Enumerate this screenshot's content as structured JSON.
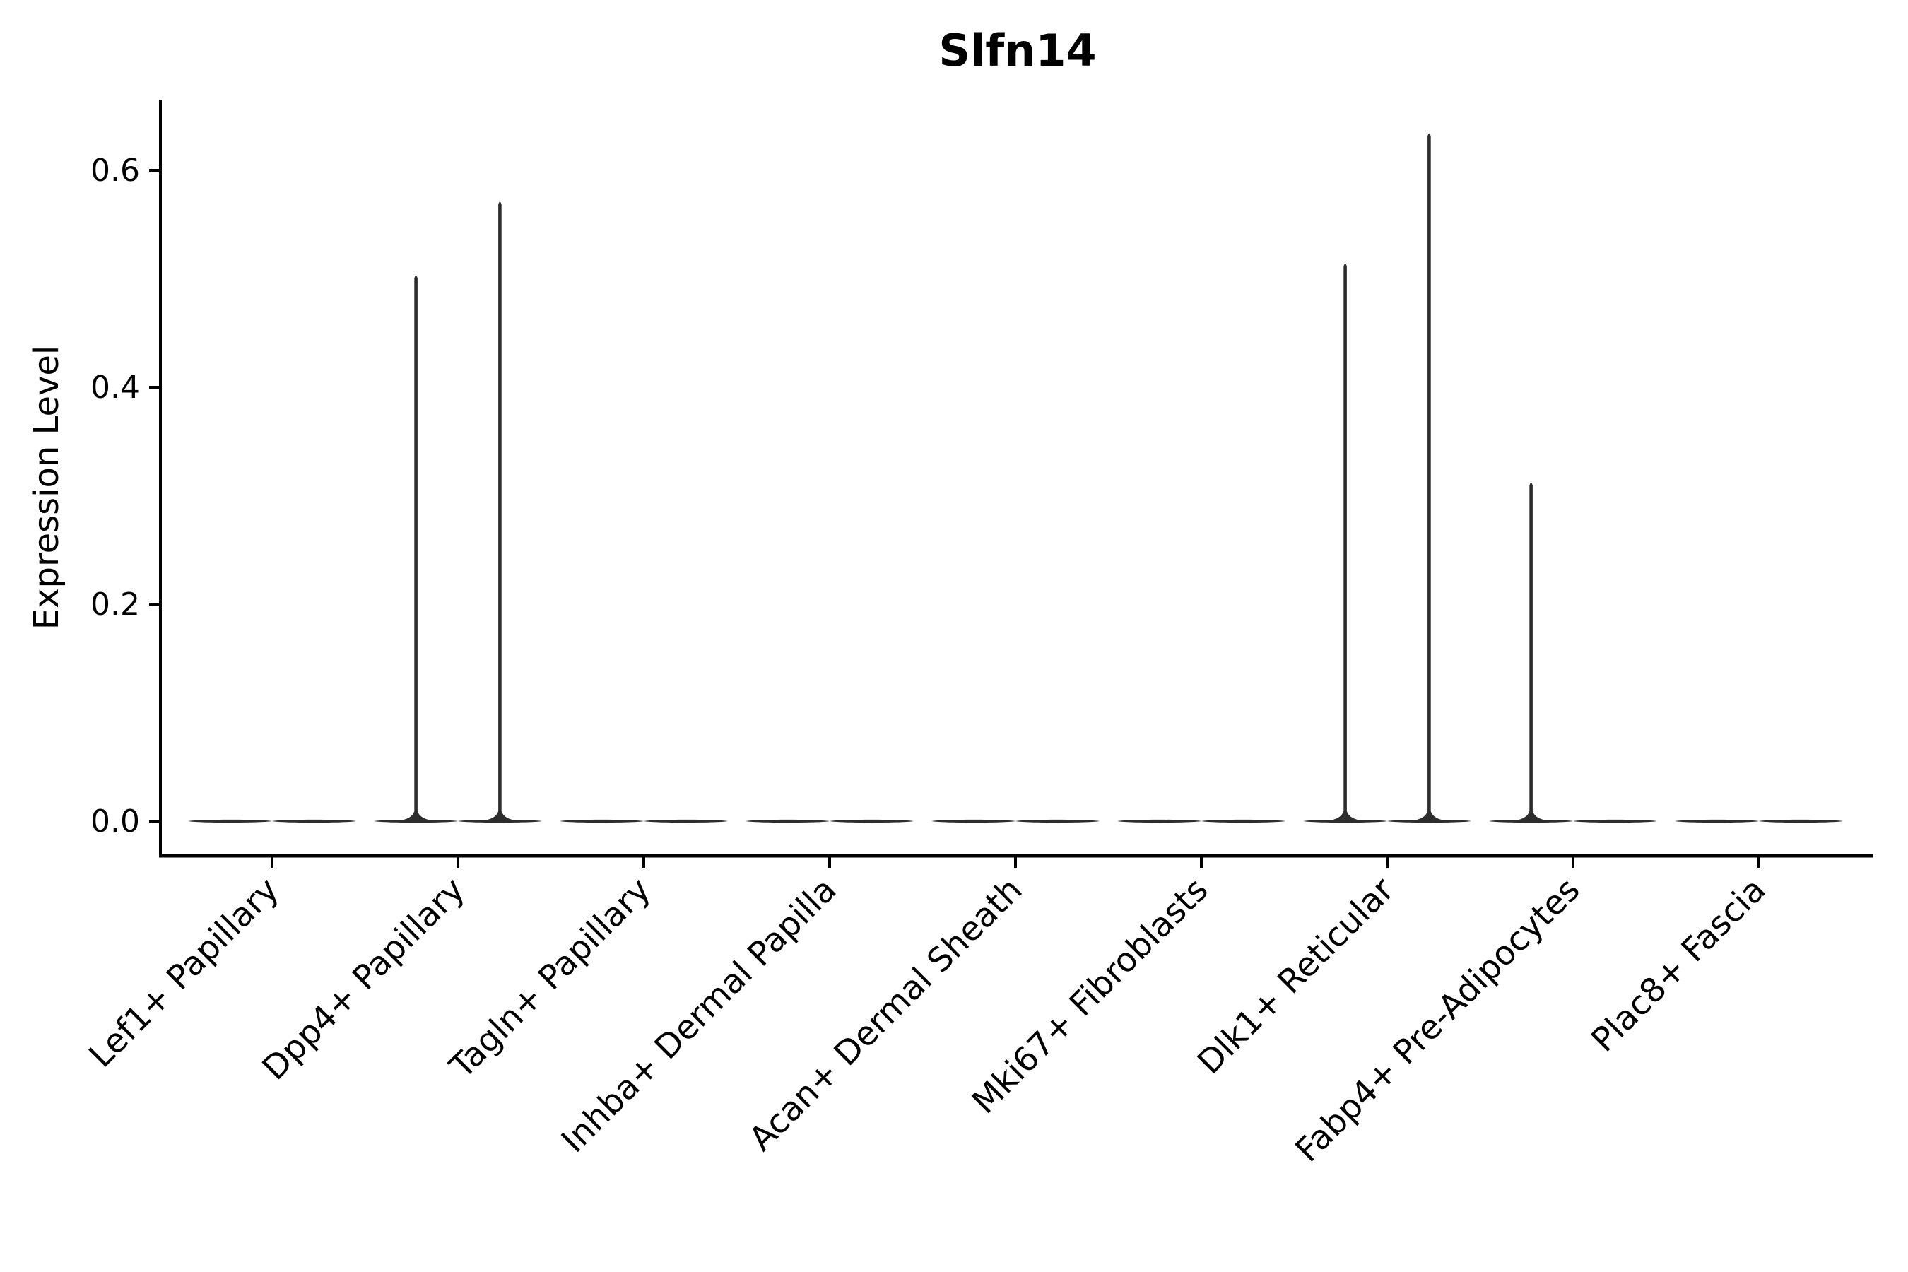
{
  "page": {
    "background": "#ffffff"
  },
  "chart_data": {
    "type": "violin",
    "title": "Slfn14",
    "ylabel": "Expression Level",
    "xlabel": "",
    "categories": [
      "Lef1+ Papillary",
      "Dpp4+ Papillary",
      "Tagln+ Papillary",
      "Inhba+ Dermal Papilla",
      "Acan+ Dermal Sheath",
      "Mki67+ Fibroblasts",
      "Dlk1+ Reticular",
      "Fabp4+ Pre-Adipocytes",
      "Plac8+ Fascia"
    ],
    "ytick_labels": [
      "0.0",
      "0.2",
      "0.4",
      "0.6"
    ],
    "ytick_values": [
      0,
      0.2,
      0.4,
      0.6
    ],
    "ylim": [
      0,
      0.665
    ],
    "grid": false,
    "legend": "none",
    "violins_per_category": 2,
    "series": [
      {
        "name": "left-violin",
        "max_values": [
          0,
          0.503,
          0,
          0,
          0,
          0,
          0.514,
          0.312,
          0
        ]
      },
      {
        "name": "right-violin",
        "max_values": [
          0,
          0.571,
          0,
          0,
          0,
          0,
          0.634,
          0,
          0
        ]
      }
    ],
    "colors": {
      "violin": "#2d2d2d",
      "axis": "#000000",
      "text": "#000000"
    }
  }
}
